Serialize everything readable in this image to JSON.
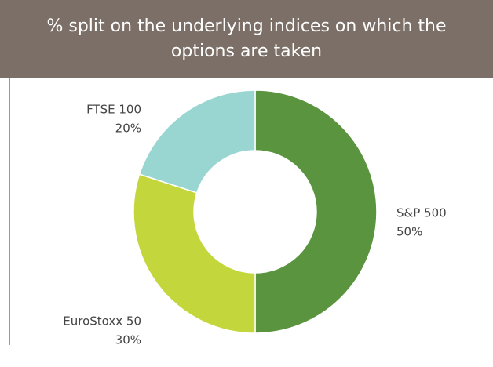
{
  "chart_data": {
    "type": "pie",
    "title": "% split on the underlying indices on which the options are taken",
    "categories": [
      "S&P 500",
      "EuroStoxx 50",
      "FTSE 100"
    ],
    "values": [
      50,
      30,
      20
    ],
    "value_labels": [
      "50%",
      "30%",
      "20%"
    ],
    "colors": [
      "#5b943e",
      "#c3d63b",
      "#9ad6d1"
    ],
    "donut": true
  }
}
